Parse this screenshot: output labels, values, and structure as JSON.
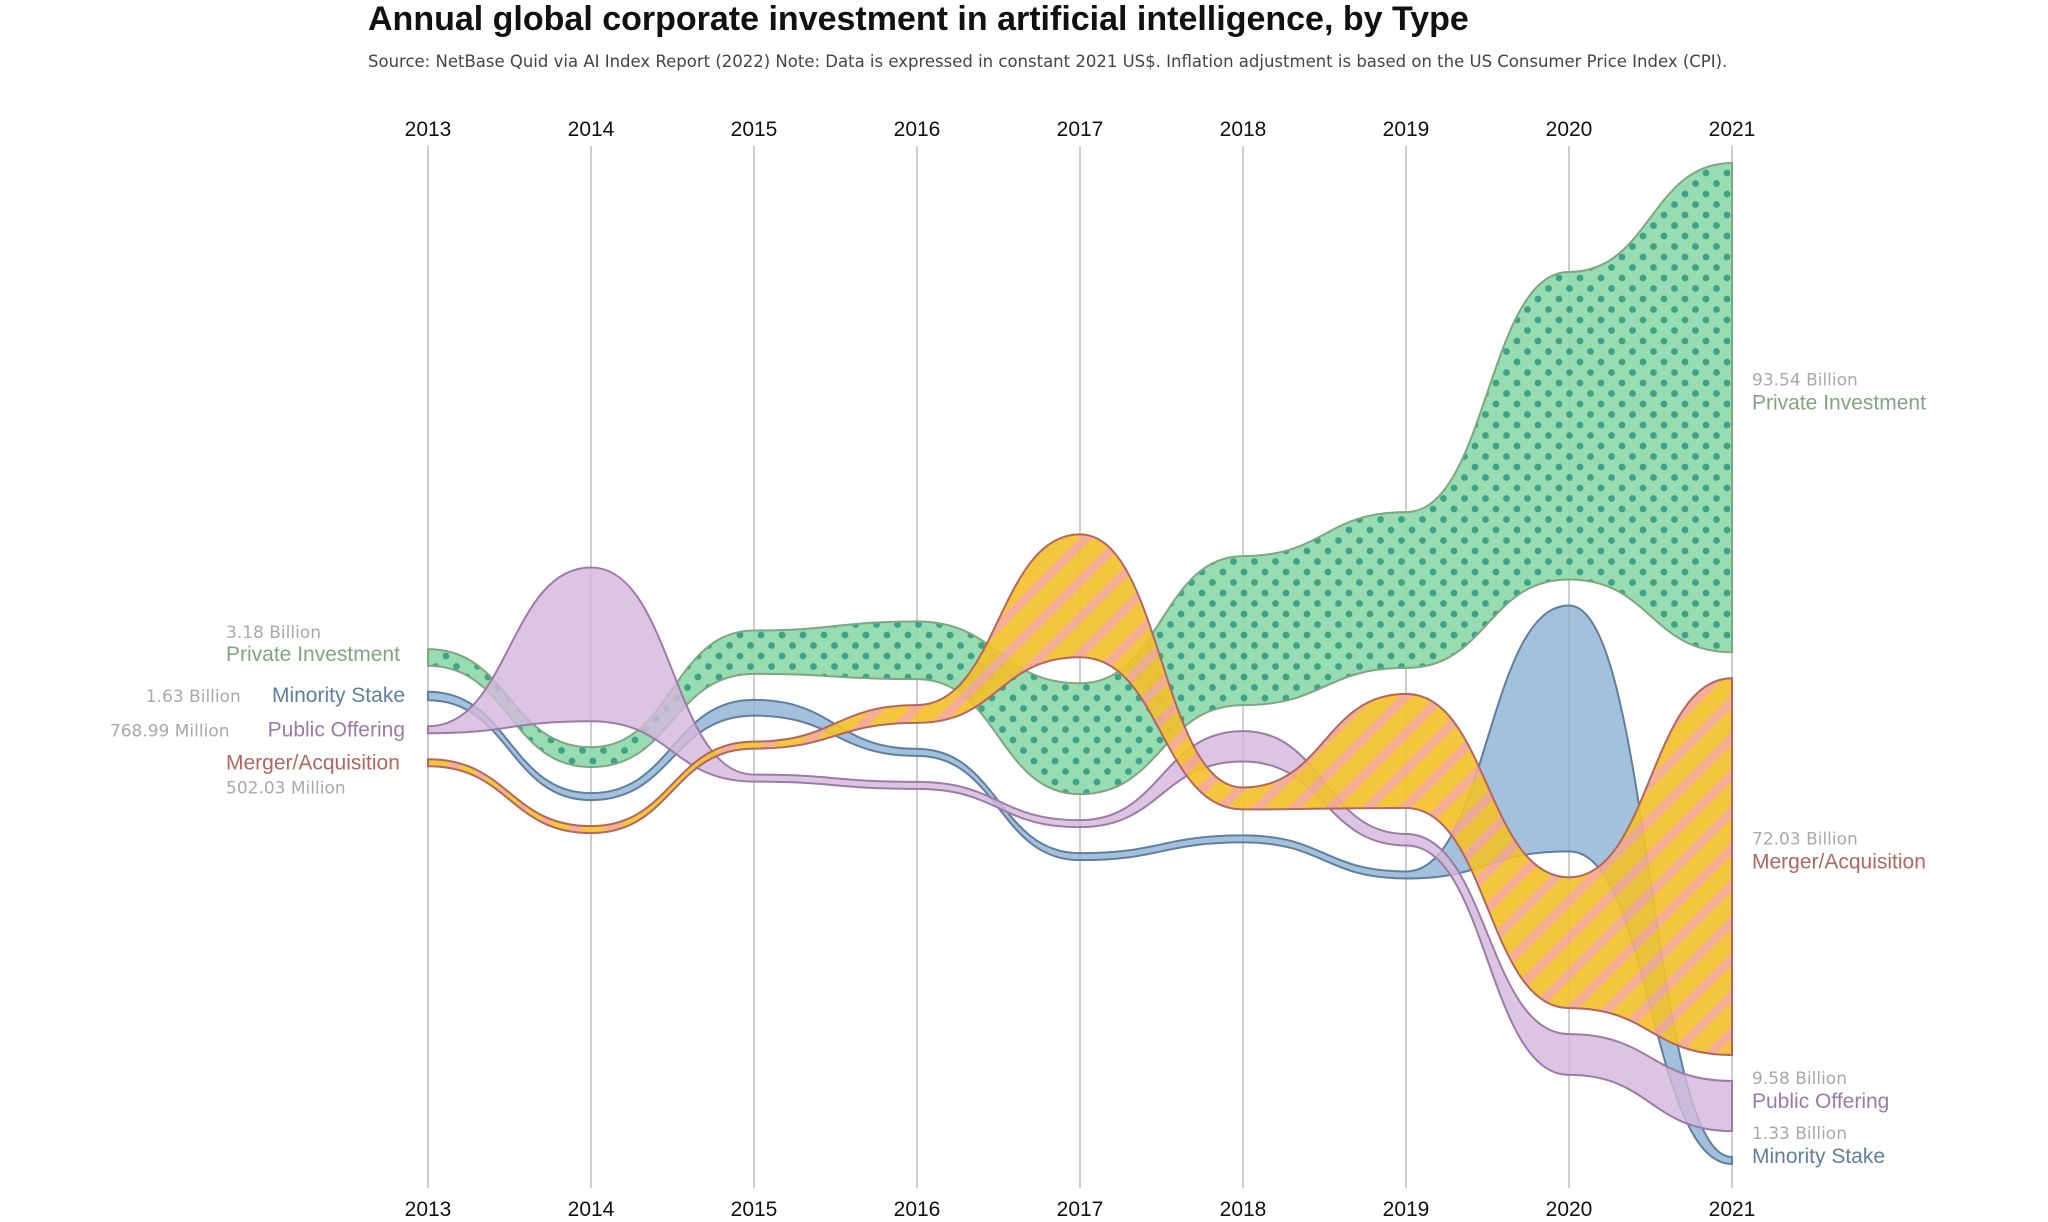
{
  "title": "Annual global corporate investment in artificial intelligence, by Type",
  "subtitle": "Source: NetBase Quid via AI Index Report (2022) Note: Data is expressed in constant 2021 US$. Inflation adjustment is based on the US Consumer Price Index (CPI).",
  "chart_data": {
    "type": "area",
    "subtype": "bump-stream",
    "x": [
      2013,
      2014,
      2015,
      2016,
      2017,
      2018,
      2019,
      2020,
      2021
    ],
    "unit": "Billion constant 2021 US$",
    "series": [
      {
        "name": "Private Investment",
        "color": "#7fa77f",
        "fill": "#8fd9ab",
        "pattern": "dots",
        "pattern_color": "#2e9a7e",
        "values": [
          3.18,
          3.8,
          8.3,
          11.0,
          21.2,
          28.5,
          29.8,
          58.8,
          93.54
        ],
        "start_label": "3.18 Billion",
        "end_label": "93.54 Billion"
      },
      {
        "name": "Minority Stake",
        "color": "#5f7fa0",
        "fill": "#8fb3d4",
        "pattern": "none",
        "values": [
          1.63,
          0.4,
          3.0,
          0.9,
          0.7,
          0.7,
          0.8,
          47.0,
          1.33
        ],
        "start_label": "1.63 Billion",
        "end_label": "1.33 Billion"
      },
      {
        "name": "Public Offering",
        "color": "#9e7aa8",
        "fill": "#d4b8dc",
        "pattern": "none",
        "values": [
          0.76899,
          29.4,
          0.8,
          0.7,
          0.8,
          5.8,
          2.2,
          7.8,
          9.58
        ],
        "start_label": "768.99 Million",
        "end_label": "9.58 Billion"
      },
      {
        "name": "Merger/Acquisition",
        "color": "#b3665f",
        "fill": "#f2c12e",
        "pattern": "stripes",
        "pattern_color": "#f4a78c",
        "values": [
          0.50203,
          0.35,
          0.9,
          3.4,
          23.5,
          4.2,
          21.8,
          25.0,
          72.03
        ],
        "start_label": "502.03 Million",
        "end_label": "72.03 Billion"
      }
    ]
  }
}
